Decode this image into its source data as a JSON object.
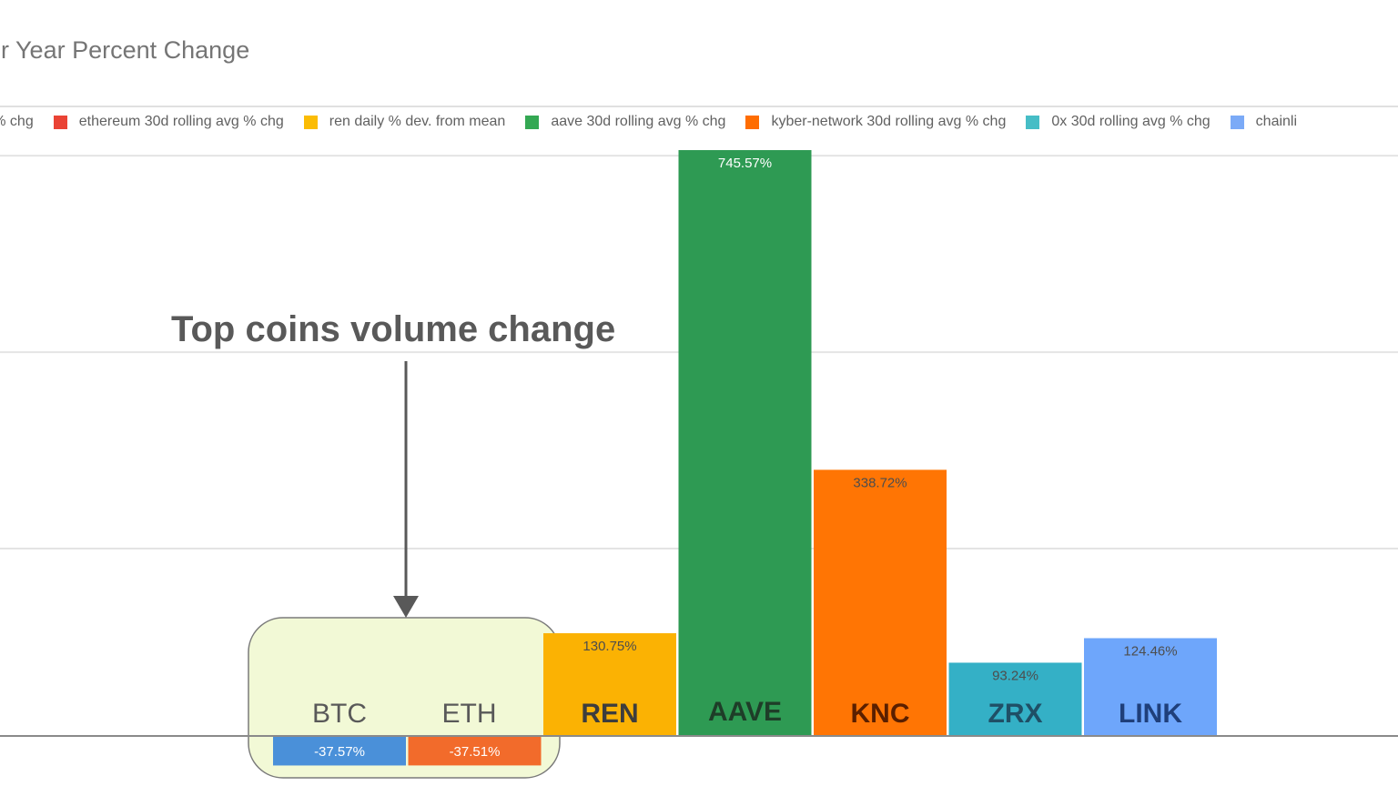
{
  "title": "er Year Percent Change",
  "legend": [
    {
      "label": "avg % chg",
      "color": "#4a90d9"
    },
    {
      "label": "ethereum 30d rolling avg % chg",
      "color": "#ea4335"
    },
    {
      "label": "ren daily % dev. from mean",
      "color": "#fbbc04"
    },
    {
      "label": "aave 30d rolling avg % chg",
      "color": "#34a853"
    },
    {
      "label": "kyber-network 30d rolling avg % chg",
      "color": "#ff6d01"
    },
    {
      "label": "0x 30d rolling avg % chg",
      "color": "#46bdc6"
    },
    {
      "label": "chainli",
      "color": "#7baaf7"
    }
  ],
  "annotation": {
    "text": "Top coins volume change"
  },
  "chart_data": {
    "type": "bar",
    "categories": [
      "BTC",
      "ETH",
      "REN",
      "AAVE",
      "KNC",
      "ZRX",
      "LINK"
    ],
    "values": [
      -37.57,
      -37.51,
      130.75,
      745.57,
      338.72,
      93.24,
      124.46
    ],
    "value_labels": [
      "-37.57%",
      "-37.51%",
      "130.75%",
      "745.57%",
      "338.72%",
      "93.24%",
      "124.46%"
    ],
    "colors": [
      "#4a90d9",
      "#f26b2b",
      "#fbb203",
      "#2e9a53",
      "#ff7504",
      "#34b0c6",
      "#6ea6fb"
    ],
    "label_colors": [
      "#595959",
      "#595959",
      "#3d3d3d",
      "#1e3d28",
      "#5a1f00",
      "#1f4f66",
      "#1f3f7a"
    ],
    "grid": true,
    "ylim": [
      -65,
      860
    ]
  }
}
